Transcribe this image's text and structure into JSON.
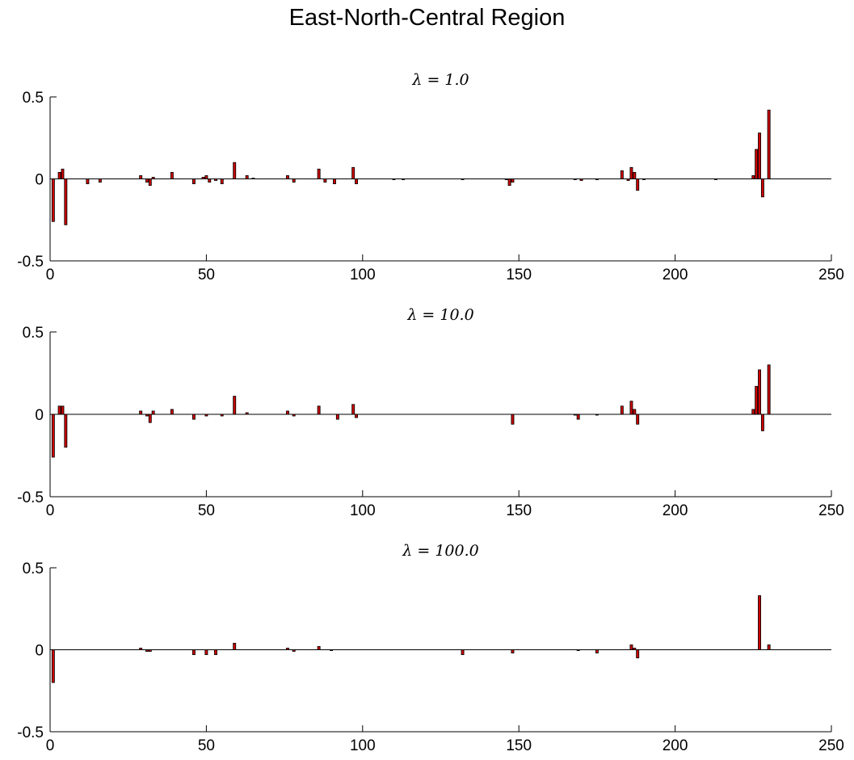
{
  "title": "East-North-Central Region",
  "colors": {
    "bar_fill": "#cc0000",
    "bar_stroke": "#000000",
    "axis": "#000000"
  },
  "chart_data": [
    {
      "type": "bar",
      "title": "λ = 1.0",
      "xlim": [
        0,
        250
      ],
      "ylim": [
        -0.5,
        0.5
      ],
      "xticks": [
        0,
        50,
        100,
        150,
        200,
        250
      ],
      "yticks": [
        -0.5,
        0,
        0.5
      ],
      "ytick_labels": [
        "-0.5",
        "0",
        "0.5"
      ],
      "grid": false,
      "x": [
        1,
        3,
        4,
        5,
        12,
        16,
        29,
        31,
        32,
        33,
        39,
        46,
        49,
        50,
        51,
        53,
        55,
        59,
        63,
        65,
        76,
        78,
        86,
        88,
        91,
        97,
        98,
        110,
        113,
        132,
        146,
        147,
        148,
        168,
        170,
        175,
        183,
        185,
        186,
        187,
        188,
        190,
        213,
        225,
        226,
        227,
        228,
        230
      ],
      "values": [
        -0.26,
        0.04,
        0.06,
        -0.28,
        -0.03,
        -0.02,
        0.02,
        -0.02,
        -0.04,
        0.01,
        0.04,
        -0.03,
        0.01,
        0.02,
        -0.02,
        -0.01,
        -0.03,
        0.1,
        0.02,
        0.005,
        0.02,
        -0.02,
        0.06,
        -0.02,
        -0.03,
        0.07,
        -0.03,
        -0.003,
        -0.003,
        -0.003,
        -0.003,
        -0.04,
        -0.02,
        -0.005,
        -0.01,
        -0.003,
        0.05,
        -0.01,
        0.07,
        0.04,
        -0.07,
        -0.003,
        -0.003,
        0.02,
        0.18,
        0.28,
        -0.11,
        0.42
      ]
    },
    {
      "type": "bar",
      "title": "λ = 10.0",
      "xlim": [
        0,
        250
      ],
      "ylim": [
        -0.5,
        0.5
      ],
      "xticks": [
        0,
        50,
        100,
        150,
        200,
        250
      ],
      "yticks": [
        -0.5,
        0,
        0.5
      ],
      "ytick_labels": [
        "-0.5",
        "0",
        "0.5"
      ],
      "grid": false,
      "x": [
        1,
        3,
        4,
        5,
        29,
        31,
        32,
        33,
        39,
        46,
        50,
        55,
        59,
        63,
        76,
        78,
        86,
        92,
        97,
        98,
        148,
        168,
        169,
        175,
        183,
        186,
        187,
        188,
        225,
        226,
        227,
        228,
        230
      ],
      "values": [
        -0.26,
        0.05,
        0.05,
        -0.2,
        0.02,
        -0.01,
        -0.05,
        0.02,
        0.03,
        -0.03,
        -0.01,
        -0.01,
        0.11,
        0.01,
        0.02,
        -0.01,
        0.05,
        -0.03,
        0.06,
        -0.02,
        -0.06,
        -0.005,
        -0.03,
        -0.005,
        0.05,
        0.08,
        0.03,
        -0.06,
        0.03,
        0.17,
        0.27,
        -0.1,
        0.3
      ]
    },
    {
      "type": "bar",
      "title": "λ = 100.0",
      "xlim": [
        0,
        250
      ],
      "ylim": [
        -0.5,
        0.5
      ],
      "xticks": [
        0,
        50,
        100,
        150,
        200,
        250
      ],
      "yticks": [
        -0.5,
        0,
        0.5
      ],
      "ytick_labels": [
        "-0.5",
        "0",
        "0.5"
      ],
      "grid": false,
      "x": [
        1,
        29,
        31,
        32,
        46,
        50,
        53,
        59,
        76,
        78,
        86,
        90,
        132,
        148,
        169,
        175,
        186,
        187,
        188,
        227,
        230
      ],
      "values": [
        -0.2,
        0.01,
        -0.01,
        -0.01,
        -0.03,
        -0.03,
        -0.03,
        0.04,
        0.01,
        -0.01,
        0.02,
        -0.005,
        -0.03,
        -0.02,
        -0.005,
        -0.02,
        0.03,
        0.01,
        -0.05,
        0.33,
        0.03
      ]
    }
  ]
}
